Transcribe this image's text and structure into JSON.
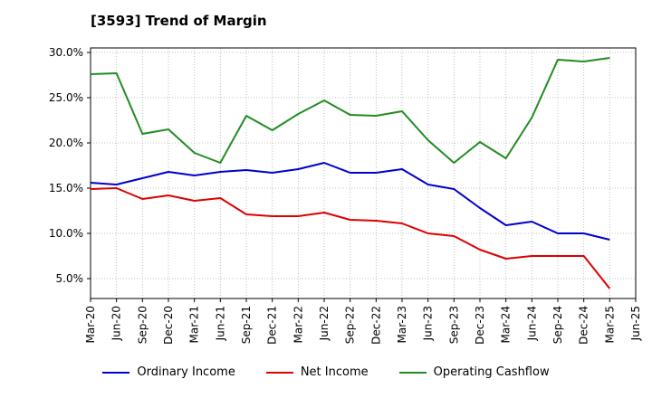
{
  "chart_data": {
    "type": "line",
    "title": "[3593]  Trend of Margin",
    "xlabel": "",
    "ylabel": "",
    "x": [
      "Mar-20",
      "Jun-20",
      "Sep-20",
      "Dec-20",
      "Mar-21",
      "Jun-21",
      "Sep-21",
      "Dec-21",
      "Mar-22",
      "Jun-22",
      "Sep-22",
      "Dec-22",
      "Mar-23",
      "Jun-23",
      "Sep-23",
      "Dec-23",
      "Mar-24",
      "Jun-24",
      "Sep-24",
      "Dec-24",
      "Mar-25",
      "Jun-25"
    ],
    "y_ticks": [
      "5.0%",
      "10.0%",
      "15.0%",
      "20.0%",
      "25.0%",
      "30.0%"
    ],
    "y_tick_values": [
      5,
      10,
      15,
      20,
      25,
      30
    ],
    "ylim": [
      2.8,
      30.5
    ],
    "grid": true,
    "legend_position": "bottom",
    "series": [
      {
        "name": "Ordinary Income",
        "color": "#0000cc",
        "values": [
          15.6,
          15.4,
          16.1,
          16.8,
          16.4,
          16.8,
          17.0,
          16.7,
          17.1,
          17.8,
          16.7,
          16.7,
          17.1,
          15.4,
          14.9,
          12.8,
          10.9,
          11.3,
          10.0,
          10.0,
          9.3,
          null
        ]
      },
      {
        "name": "Net Income",
        "color": "#dd0000",
        "values": [
          14.9,
          15.0,
          13.8,
          14.2,
          13.6,
          13.9,
          12.1,
          11.9,
          11.9,
          12.3,
          11.5,
          11.4,
          11.1,
          10.0,
          9.7,
          8.2,
          7.2,
          7.5,
          7.5,
          7.5,
          3.9,
          null
        ]
      },
      {
        "name": "Operating Cashflow",
        "color": "#228b22",
        "values": [
          27.6,
          27.7,
          21.0,
          21.5,
          18.9,
          17.8,
          23.0,
          21.4,
          23.2,
          24.7,
          23.1,
          23.0,
          23.5,
          20.3,
          17.8,
          20.1,
          18.3,
          22.8,
          29.2,
          29.0,
          29.4,
          null
        ]
      }
    ]
  }
}
